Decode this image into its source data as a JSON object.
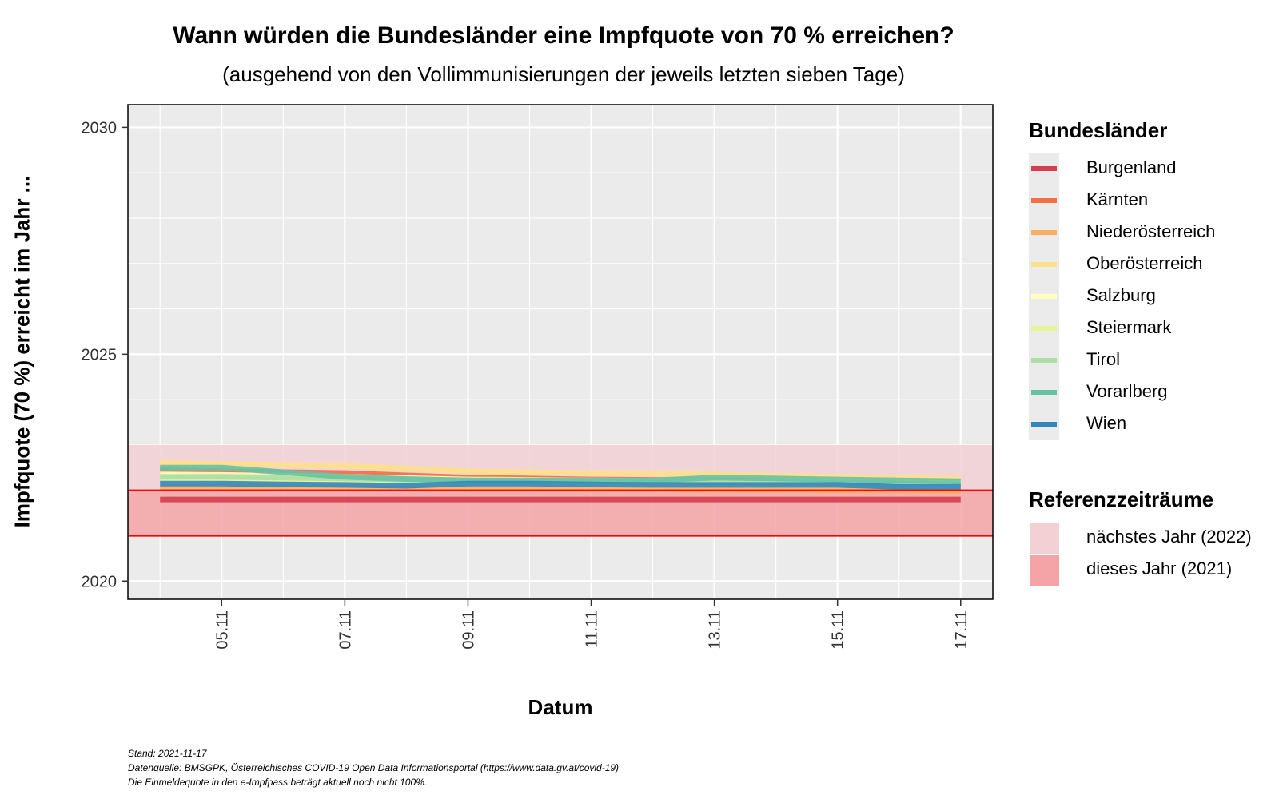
{
  "chart_data": {
    "type": "area",
    "title": "Wann würden die Bundesländer eine Impfquote von 70 % erreichen?",
    "subtitle": "(ausgehend von den Vollimmunisierungen der jeweils letzten sieben Tage)",
    "xlabel": "Datum",
    "ylabel": "Impfquote (70 %) erreicht im Jahr ...",
    "x": [
      "04.11",
      "05.11",
      "06.11",
      "07.11",
      "08.11",
      "09.11",
      "10.11",
      "11.11",
      "12.11",
      "13.11",
      "14.11",
      "15.11",
      "16.11",
      "17.11"
    ],
    "x_tick_labels": [
      "05.11",
      "07.11",
      "09.11",
      "11.11",
      "13.11",
      "15.11",
      "17.11"
    ],
    "ylim": [
      2019.6,
      2030.5
    ],
    "y_ticks": [
      2020,
      2025,
      2030
    ],
    "grid": true,
    "legend_title": "Bundesländer",
    "series": [
      {
        "name": "Burgenland",
        "color": "#d53e4f",
        "values": [
          2021.8,
          2021.8,
          2021.8,
          2021.8,
          2021.8,
          2021.8,
          2021.8,
          2021.8,
          2021.8,
          2021.8,
          2021.8,
          2021.8,
          2021.8,
          2021.8
        ]
      },
      {
        "name": "Kärnten",
        "color": "#f46d43",
        "values": [
          2022.45,
          2022.42,
          2022.4,
          2022.38,
          2022.33,
          2022.28,
          2022.26,
          2022.24,
          2022.23,
          2022.22,
          2022.2,
          2022.19,
          2022.17,
          2022.15
        ]
      },
      {
        "name": "Niederösterreich",
        "color": "#fdae61",
        "values": [
          2022.05,
          2022.05,
          2022.05,
          2022.05,
          2022.04,
          2022.03,
          2022.03,
          2022.02,
          2022.02,
          2022.01,
          2022.01,
          2022.0,
          2022.0,
          2021.98
        ]
      },
      {
        "name": "Oberösterreich",
        "color": "#fee08b",
        "values": [
          2022.6,
          2022.58,
          2022.56,
          2022.54,
          2022.48,
          2022.42,
          2022.4,
          2022.38,
          2022.37,
          2022.35,
          2022.32,
          2022.3,
          2022.28,
          2022.25
        ]
      },
      {
        "name": "Salzburg",
        "color": "#ffffbf",
        "values": [
          2022.35,
          2022.34,
          2022.32,
          2022.3,
          2022.27,
          2022.24,
          2022.23,
          2022.22,
          2022.21,
          2022.2,
          2022.19,
          2022.18,
          2022.17,
          2022.16
        ]
      },
      {
        "name": "Steiermark",
        "color": "#e6f598",
        "values": [
          2022.25,
          2022.24,
          2022.23,
          2022.22,
          2022.2,
          2022.18,
          2022.17,
          2022.17,
          2022.16,
          2022.15,
          2022.14,
          2022.13,
          2022.12,
          2022.1
        ]
      },
      {
        "name": "Tirol",
        "color": "#abdda4",
        "values": [
          2022.3,
          2022.3,
          2022.28,
          2022.26,
          2022.24,
          2022.22,
          2022.21,
          2022.2,
          2022.19,
          2022.18,
          2022.17,
          2022.16,
          2022.15,
          2022.12
        ]
      },
      {
        "name": "Vorarlberg",
        "color": "#66c2a5",
        "values": [
          2022.5,
          2022.5,
          2022.4,
          2022.3,
          2022.25,
          2022.22,
          2022.22,
          2022.22,
          2022.22,
          2022.28,
          2022.26,
          2022.24,
          2022.22,
          2022.2
        ]
      },
      {
        "name": "Wien",
        "color": "#3288bd",
        "values": [
          2022.15,
          2022.15,
          2022.13,
          2022.12,
          2022.1,
          2022.15,
          2022.15,
          2022.13,
          2022.12,
          2022.12,
          2022.12,
          2022.12,
          2022.08,
          2022.08
        ]
      }
    ],
    "reference_title": "Referenzzeiträume",
    "reference_bands": [
      {
        "name": "nächstes Jahr (2022)",
        "from": 2022,
        "to": 2023,
        "color": "#f2d0d4"
      },
      {
        "name": "dieses Jahr (2021)",
        "from": 2021,
        "to": 2022,
        "color": "#f4a3a6"
      }
    ],
    "reference_line_color": "#ff0000"
  },
  "footer": {
    "line1": "Stand: 2021-11-17",
    "line2": "Datenquelle: BMSGPK, Österreichisches COVID-19 Open Data Informationsportal (https://www.data.gv.at/covid-19)",
    "line3": "Die Einmeldequote in den e-Impfpass beträgt aktuell noch nicht 100%."
  }
}
